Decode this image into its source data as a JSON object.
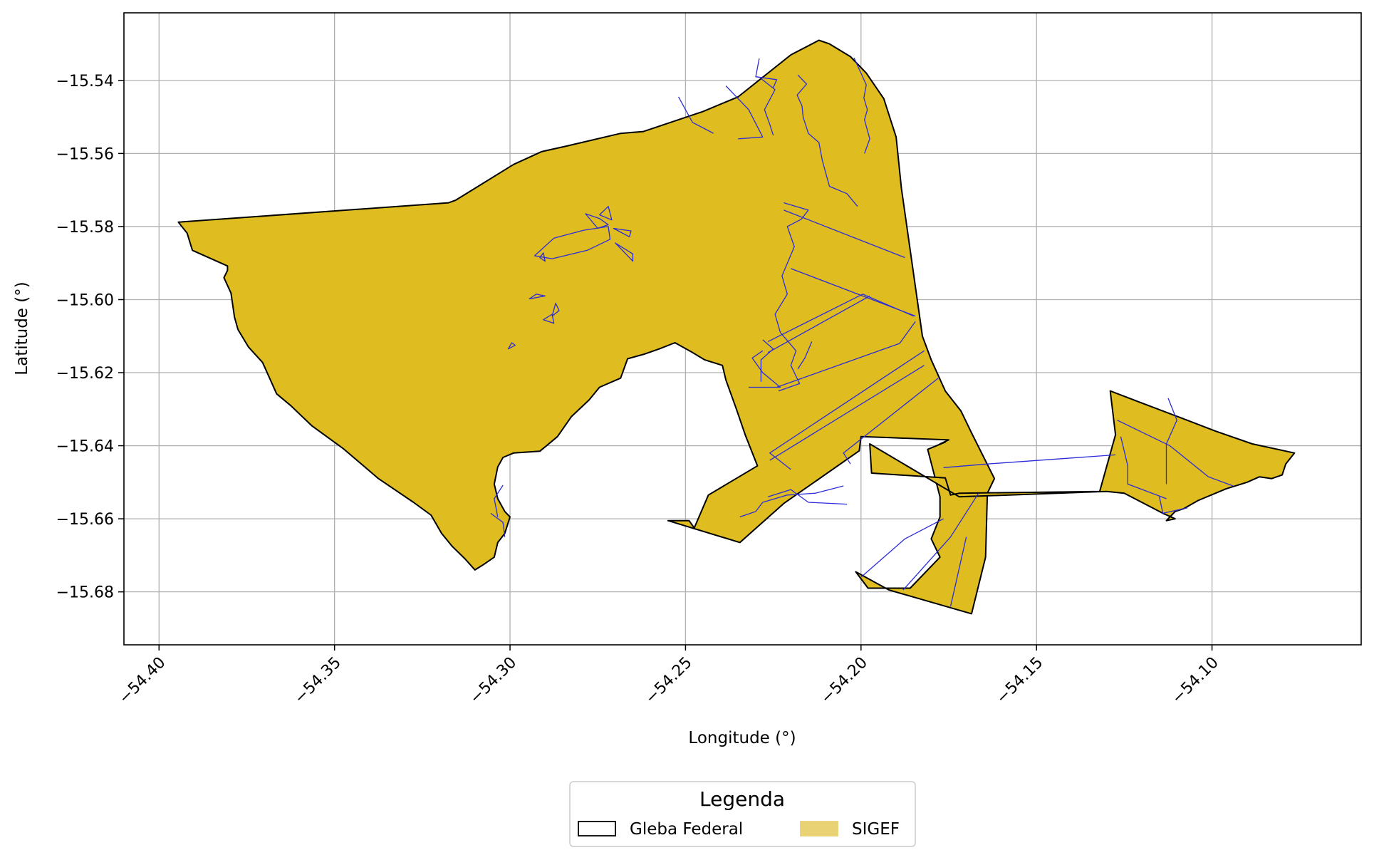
{
  "chart_data": {
    "type": "map",
    "xlabel": "Longitude (°)",
    "ylabel": "Latitude (°)",
    "xlim": [
      -54.41,
      -54.0575
    ],
    "ylim": [
      -15.6945,
      -15.5215
    ],
    "x_ticks": [
      -54.4,
      -54.35,
      -54.3,
      -54.25,
      -54.2,
      -54.15,
      -54.1
    ],
    "x_tick_labels": [
      "−54.40",
      "−54.35",
      "−54.30",
      "−54.25",
      "−54.20",
      "−54.15",
      "−54.10"
    ],
    "y_ticks": [
      -15.54,
      -15.56,
      -15.58,
      -15.6,
      -15.62,
      -15.64,
      -15.66,
      -15.68
    ],
    "y_tick_labels": [
      "−15.54",
      "−15.56",
      "−15.58",
      "−15.60",
      "−15.62",
      "−15.64",
      "−15.66",
      "−15.68"
    ],
    "grid": true,
    "legend": {
      "title": "Legenda",
      "placement": "bottom-center-outside",
      "entries": [
        {
          "label": "Gleba Federal",
          "fill": "#ffffff",
          "edge": "#000000"
        },
        {
          "label": "SIGEF",
          "fill": "#e8d274",
          "edge": "#e8d274"
        }
      ]
    },
    "colors": {
      "fill": "#dfbd20",
      "boundary": "#000000",
      "parcel_lines": "#2b2bd9",
      "grid": "#b0b0b0"
    },
    "gleba_polygons": [
      [
        [
          -54.3945,
          -15.5788
        ],
        [
          -54.392,
          -15.5818
        ],
        [
          -54.3905,
          -15.5865
        ],
        [
          -54.3875,
          -15.5878
        ],
        [
          -54.3805,
          -15.5908
        ],
        [
          -54.3805,
          -15.592
        ],
        [
          -54.3815,
          -15.594
        ],
        [
          -54.3795,
          -15.5982
        ],
        [
          -54.3785,
          -15.6048
        ],
        [
          -54.3775,
          -15.6082
        ],
        [
          -54.3745,
          -15.613
        ],
        [
          -54.3705,
          -15.6172
        ],
        [
          -54.3685,
          -15.6215
        ],
        [
          -54.3665,
          -15.6258
        ],
        [
          -54.3625,
          -15.629
        ],
        [
          -54.3565,
          -15.6345
        ],
        [
          -54.3475,
          -15.6408
        ],
        [
          -54.3375,
          -15.649
        ],
        [
          -54.3275,
          -15.6555
        ],
        [
          -54.3225,
          -15.659
        ],
        [
          -54.3195,
          -15.664
        ],
        [
          -54.3165,
          -15.6675
        ],
        [
          -54.3128,
          -15.671
        ],
        [
          -54.31,
          -15.674
        ],
        [
          -54.3075,
          -15.6725
        ],
        [
          -54.3045,
          -15.6705
        ],
        [
          -54.3035,
          -15.6665
        ],
        [
          -54.3015,
          -15.664
        ],
        [
          -54.3,
          -15.6595
        ],
        [
          -54.3015,
          -15.658
        ],
        [
          -54.3035,
          -15.6545
        ],
        [
          -54.3045,
          -15.6505
        ],
        [
          -54.3035,
          -15.6458
        ],
        [
          -54.302,
          -15.6432
        ],
        [
          -54.299,
          -15.642
        ],
        [
          -54.2915,
          -15.6415
        ],
        [
          -54.2865,
          -15.6375
        ],
        [
          -54.2825,
          -15.632
        ],
        [
          -54.2775,
          -15.6275
        ],
        [
          -54.2745,
          -15.624
        ],
        [
          -54.2685,
          -15.6215
        ],
        [
          -54.2665,
          -15.6162
        ],
        [
          -54.262,
          -15.615
        ],
        [
          -54.2575,
          -15.6135
        ],
        [
          -54.253,
          -15.6118
        ],
        [
          -54.248,
          -15.6145
        ],
        [
          -54.2445,
          -15.6165
        ],
        [
          -54.2395,
          -15.618
        ],
        [
          -54.2385,
          -15.622
        ],
        [
          -54.2355,
          -15.63
        ],
        [
          -54.233,
          -15.637
        ],
        [
          -54.2295,
          -15.6455
        ],
        [
          -54.2435,
          -15.6535
        ],
        [
          -54.2475,
          -15.6625
        ],
        [
          -54.249,
          -15.6605
        ],
        [
          -54.255,
          -15.6605
        ],
        [
          -54.2345,
          -15.6665
        ],
        [
          -54.222,
          -15.6558
        ],
        [
          -54.2005,
          -15.6414
        ],
        [
          -54.2,
          -15.6375
        ],
        [
          -54.1915,
          -15.6378
        ],
        [
          -54.175,
          -15.6384
        ],
        [
          -54.1775,
          -15.6395
        ],
        [
          -54.176,
          -15.639
        ],
        [
          -54.181,
          -15.641
        ],
        [
          -54.1775,
          -15.654
        ],
        [
          -54.1775,
          -15.6595
        ],
        [
          -54.18,
          -15.6655
        ],
        [
          -54.1775,
          -15.6705
        ],
        [
          -54.186,
          -15.679
        ],
        [
          -54.198,
          -15.679
        ],
        [
          -54.2015,
          -15.6745
        ],
        [
          -54.192,
          -15.6795
        ],
        [
          -54.1685,
          -15.686
        ],
        [
          -54.1645,
          -15.6705
        ],
        [
          -54.164,
          -15.653
        ],
        [
          -54.162,
          -15.649
        ],
        [
          -54.1685,
          -15.6365
        ],
        [
          -54.1715,
          -15.6305
        ],
        [
          -54.176,
          -15.625
        ],
        [
          -54.18,
          -15.6165
        ],
        [
          -54.1825,
          -15.61
        ],
        [
          -54.1885,
          -15.5695
        ],
        [
          -54.19,
          -15.5555
        ],
        [
          -54.1935,
          -15.545
        ],
        [
          -54.1985,
          -15.538
        ],
        [
          -54.203,
          -15.5335
        ],
        [
          -54.209,
          -15.53
        ],
        [
          -54.212,
          -15.529
        ],
        [
          -54.22,
          -15.533
        ],
        [
          -54.235,
          -15.5445
        ],
        [
          -54.245,
          -15.5485
        ],
        [
          -54.262,
          -15.554
        ],
        [
          -54.2685,
          -15.5545
        ],
        [
          -54.284,
          -15.558
        ],
        [
          -54.291,
          -15.5595
        ],
        [
          -54.299,
          -15.563
        ],
        [
          -54.3155,
          -15.5728
        ],
        [
          -54.3175,
          -15.5735
        ],
        [
          -54.3945,
          -15.5788
        ]
      ],
      [
        [
          -54.1975,
          -15.6395
        ],
        [
          -54.197,
          -15.6475
        ],
        [
          -54.176,
          -15.6488
        ],
        [
          -54.1745,
          -15.6535
        ],
        [
          -54.172,
          -15.653
        ],
        [
          -54.132,
          -15.6525
        ],
        [
          -54.1275,
          -15.637
        ],
        [
          -54.129,
          -15.625
        ],
        [
          -54.1195,
          -15.6285
        ],
        [
          -54.1085,
          -15.6325
        ],
        [
          -54.099,
          -15.636
        ],
        [
          -54.0885,
          -15.6395
        ],
        [
          -54.0765,
          -15.642
        ],
        [
          -54.079,
          -15.645
        ],
        [
          -54.08,
          -15.648
        ],
        [
          -54.083,
          -15.649
        ],
        [
          -54.0865,
          -15.6485
        ],
        [
          -54.09,
          -15.65
        ],
        [
          -54.096,
          -15.6518
        ],
        [
          -54.104,
          -15.655
        ],
        [
          -54.108,
          -15.6572
        ],
        [
          -54.1105,
          -15.658
        ],
        [
          -54.113,
          -15.6605
        ],
        [
          -54.1105,
          -15.66
        ],
        [
          -54.114,
          -15.6585
        ],
        [
          -54.125,
          -15.653
        ],
        [
          -54.13,
          -15.6525
        ],
        [
          -54.172,
          -15.654
        ],
        [
          -54.1975,
          -15.6395
        ]
      ]
    ],
    "sigef_polylines": [
      [
        [
          -54.202,
          -15.5338
        ],
        [
          -54.1985,
          -15.5412
        ],
        [
          -54.1992,
          -15.5448
        ],
        [
          -54.1982,
          -15.548
        ],
        [
          -54.199,
          -15.5508
        ],
        [
          -54.1975,
          -15.556
        ],
        [
          -54.199,
          -15.56
        ]
      ],
      [
        [
          -54.218,
          -15.5385
        ],
        [
          -54.2155,
          -15.541
        ],
        [
          -54.2182,
          -15.544
        ],
        [
          -54.2168,
          -15.547
        ],
        [
          -54.2165,
          -15.55
        ],
        [
          -54.215,
          -15.5545
        ],
        [
          -54.212,
          -15.557
        ],
        [
          -54.211,
          -15.562
        ],
        [
          -54.209,
          -15.569
        ],
        [
          -54.204,
          -15.571
        ],
        [
          -54.201,
          -15.5745
        ]
      ],
      [
        [
          -54.2385,
          -15.5415
        ],
        [
          -54.232,
          -15.548
        ],
        [
          -54.228,
          -15.5555
        ],
        [
          -54.235,
          -15.556
        ]
      ],
      [
        [
          -54.2285,
          -15.5395
        ],
        [
          -54.2245,
          -15.5425
        ],
        [
          -54.2275,
          -15.548
        ],
        [
          -54.226,
          -15.552
        ],
        [
          -54.225,
          -15.555
        ]
      ],
      [
        [
          -54.229,
          -15.534
        ],
        [
          -54.23,
          -15.539
        ],
        [
          -54.224,
          -15.5398
        ],
        [
          -54.225,
          -15.542
        ]
      ],
      [
        [
          -54.252,
          -15.5445
        ],
        [
          -54.25,
          -15.548
        ],
        [
          -54.248,
          -15.5515
        ],
        [
          -54.245,
          -15.553
        ],
        [
          -54.242,
          -15.5545
        ]
      ],
      [
        [
          -54.222,
          -15.5735
        ],
        [
          -54.215,
          -15.5755
        ],
        [
          -54.217,
          -15.578
        ],
        [
          -54.221,
          -15.58
        ],
        [
          -54.219,
          -15.5855
        ],
        [
          -54.2225,
          -15.5935
        ],
        [
          -54.221,
          -15.5985
        ],
        [
          -54.2245,
          -15.604
        ],
        [
          -54.223,
          -15.609
        ],
        [
          -54.2185,
          -15.614
        ],
        [
          -54.22,
          -15.618
        ],
        [
          -54.2175,
          -15.623
        ],
        [
          -54.2235,
          -15.625
        ]
      ],
      [
        [
          -54.222,
          -15.5755
        ],
        [
          -54.1875,
          -15.5885
        ]
      ],
      [
        [
          -54.22,
          -15.5915
        ],
        [
          -54.1845,
          -15.6045
        ]
      ],
      [
        [
          -54.2265,
          -15.6115
        ],
        [
          -54.1995,
          -15.5985
        ],
        [
          -54.185,
          -15.6045
        ]
      ],
      [
        [
          -54.224,
          -15.624
        ],
        [
          -54.189,
          -15.612
        ],
        [
          -54.1845,
          -15.606
        ]
      ],
      [
        [
          -54.2265,
          -15.6145
        ],
        [
          -54.1975,
          -15.599
        ]
      ],
      [
        [
          -54.214,
          -15.6115
        ],
        [
          -54.216,
          -15.616
        ],
        [
          -54.218,
          -15.619
        ]
      ],
      [
        [
          -54.2285,
          -15.6225
        ],
        [
          -54.2285,
          -15.6165
        ],
        [
          -54.225,
          -15.6135
        ],
        [
          -54.228,
          -15.611
        ]
      ],
      [
        [
          -54.232,
          -15.624
        ],
        [
          -54.223,
          -15.624
        ],
        [
          -54.228,
          -15.62
        ],
        [
          -54.231,
          -15.616
        ],
        [
          -54.228,
          -15.614
        ]
      ],
      [
        [
          -54.182,
          -15.614
        ],
        [
          -54.226,
          -15.642
        ],
        [
          -54.22,
          -15.6465
        ]
      ],
      [
        [
          -54.182,
          -15.618
        ],
        [
          -54.226,
          -15.644
        ]
      ],
      [
        [
          -54.178,
          -15.6215
        ],
        [
          -54.205,
          -15.642
        ],
        [
          -54.203,
          -15.645
        ]
      ],
      [
        [
          -54.2265,
          -15.654
        ],
        [
          -54.22,
          -15.652
        ],
        [
          -54.215,
          -15.6555
        ],
        [
          -54.204,
          -15.656
        ]
      ],
      [
        [
          -54.2345,
          -15.6595
        ],
        [
          -54.23,
          -15.658
        ],
        [
          -54.228,
          -15.6555
        ],
        [
          -54.221,
          -15.6535
        ],
        [
          -54.213,
          -15.653
        ],
        [
          -54.205,
          -15.651
        ]
      ],
      [
        [
          -54.2,
          -15.676
        ],
        [
          -54.1875,
          -15.6655
        ],
        [
          -54.1765,
          -15.66
        ]
      ],
      [
        [
          -54.188,
          -15.6795
        ],
        [
          -54.1745,
          -15.665
        ],
        [
          -54.1665,
          -15.653
        ]
      ],
      [
        [
          -54.1745,
          -15.684
        ],
        [
          -54.17,
          -15.665
        ]
      ],
      [
        [
          -54.1765,
          -15.646
        ],
        [
          -54.164,
          -15.645
        ],
        [
          -54.1275,
          -15.6425
        ]
      ],
      [
        [
          -54.127,
          -15.633
        ],
        [
          -54.112,
          -15.64
        ],
        [
          -54.101,
          -15.6485
        ],
        [
          -54.094,
          -15.651
        ]
      ],
      [
        [
          -54.126,
          -15.6375
        ],
        [
          -54.124,
          -15.6455
        ],
        [
          -54.124,
          -15.6505
        ],
        [
          -54.113,
          -15.6545
        ]
      ],
      [
        [
          -54.1125,
          -15.627
        ],
        [
          -54.11,
          -15.633
        ],
        [
          -54.113,
          -15.6395
        ],
        [
          -54.113,
          -15.6505
        ]
      ],
      [
        [
          -54.115,
          -15.654
        ],
        [
          -54.114,
          -15.6585
        ],
        [
          -54.107,
          -15.657
        ]
      ],
      [
        [
          -54.302,
          -15.6508
        ],
        [
          -54.3045,
          -15.6545
        ],
        [
          -54.3035,
          -15.6595
        ]
      ],
      [
        [
          -54.3055,
          -15.6585
        ],
        [
          -54.302,
          -15.661
        ],
        [
          -54.3015,
          -15.665
        ]
      ]
    ],
    "sigef_polygons": [
      [
        [
          -54.2875,
          -15.5832
        ],
        [
          -54.279,
          -15.581
        ],
        [
          -54.272,
          -15.58
        ],
        [
          -54.2715,
          -15.5835
        ],
        [
          -54.278,
          -15.5865
        ],
        [
          -54.288,
          -15.5888
        ],
        [
          -54.293,
          -15.588
        ],
        [
          -54.2875,
          -15.5832
        ]
      ],
      [
        [
          -54.2785,
          -15.5765
        ],
        [
          -54.2745,
          -15.5778
        ],
        [
          -54.272,
          -15.5795
        ],
        [
          -54.275,
          -15.5805
        ],
        [
          -54.2785,
          -15.5765
        ]
      ],
      [
        [
          -54.272,
          -15.5745
        ],
        [
          -54.2745,
          -15.5768
        ],
        [
          -54.271,
          -15.5782
        ],
        [
          -54.272,
          -15.5745
        ]
      ],
      [
        [
          -54.2705,
          -15.5805
        ],
        [
          -54.2655,
          -15.5812
        ],
        [
          -54.266,
          -15.5828
        ],
        [
          -54.2705,
          -15.5805
        ]
      ],
      [
        [
          -54.265,
          -15.5875
        ],
        [
          -54.27,
          -15.5845
        ],
        [
          -54.265,
          -15.5895
        ],
        [
          -54.265,
          -15.5875
        ]
      ],
      [
        [
          -54.2915,
          -15.5885
        ],
        [
          -54.29,
          -15.5895
        ],
        [
          -54.2905,
          -15.5872
        ],
        [
          -54.2915,
          -15.5885
        ]
      ],
      [
        [
          -54.2925,
          -15.5985
        ],
        [
          -54.2945,
          -15.5998
        ],
        [
          -54.29,
          -15.599
        ],
        [
          -54.2925,
          -15.5985
        ]
      ],
      [
        [
          -54.2875,
          -15.6065
        ],
        [
          -54.2905,
          -15.6055
        ],
        [
          -54.288,
          -15.604
        ],
        [
          -54.2875,
          -15.6065
        ]
      ],
      [
        [
          -54.287,
          -15.601
        ],
        [
          -54.288,
          -15.6045
        ],
        [
          -54.286,
          -15.603
        ],
        [
          -54.287,
          -15.601
        ]
      ],
      [
        [
          -54.3005,
          -15.6135
        ],
        [
          -54.2985,
          -15.6125
        ],
        [
          -54.2995,
          -15.6118
        ],
        [
          -54.3005,
          -15.6135
        ]
      ]
    ]
  }
}
